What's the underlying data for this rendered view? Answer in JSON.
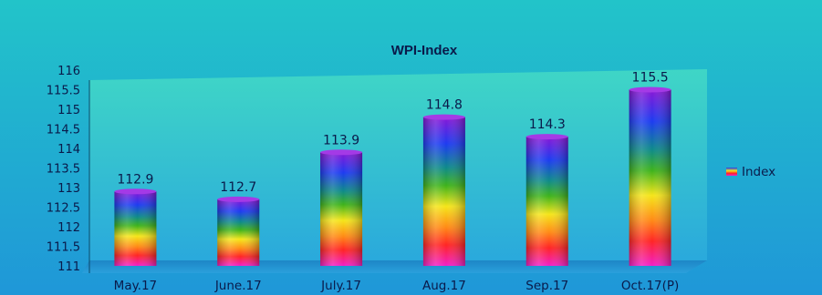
{
  "chart_data": {
    "type": "bar",
    "title": "WPI-Index",
    "categories": [
      "May.17",
      "June.17",
      "July.17",
      "Aug.17",
      "Sep.17",
      "Oct.17(P)"
    ],
    "series": [
      {
        "name": "Index",
        "values": [
          112.9,
          112.7,
          113.9,
          114.8,
          114.3,
          115.5
        ]
      }
    ],
    "ylim": [
      111,
      116
    ],
    "yticks": [
      "111",
      "111.5",
      "112",
      "112.5",
      "113",
      "113.5",
      "114",
      "114.5",
      "115",
      "115.5",
      "116"
    ],
    "legend_position": "right",
    "data_labels": [
      "112.9",
      "112.7",
      "113.9",
      "114.8",
      "114.3",
      "115.5"
    ]
  }
}
